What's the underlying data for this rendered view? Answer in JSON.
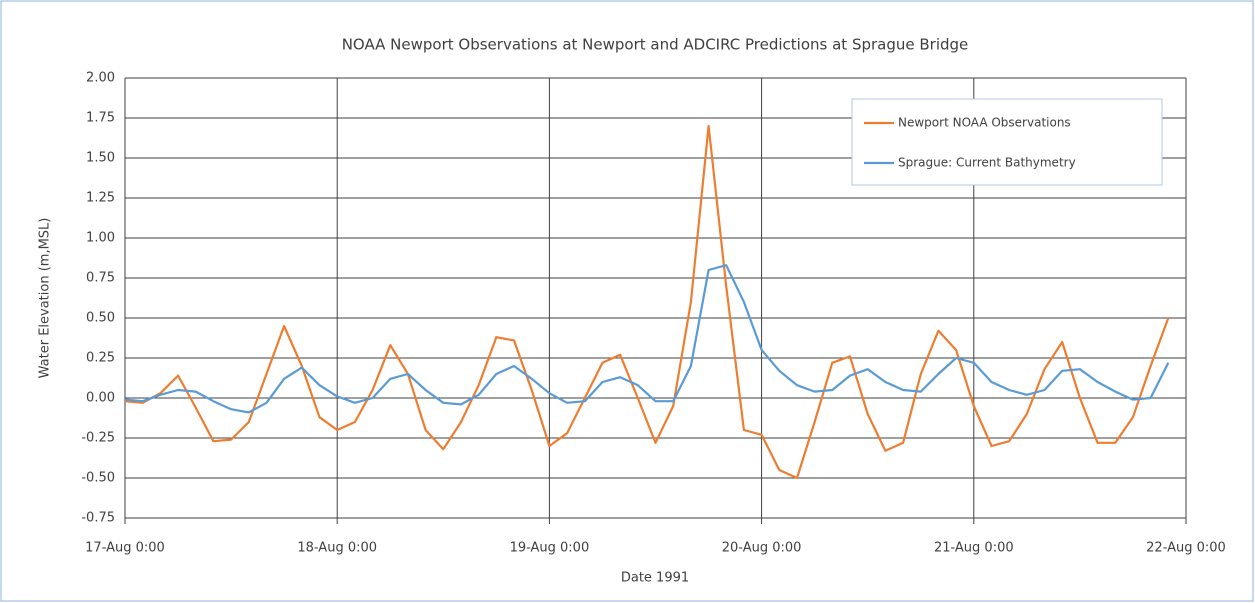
{
  "chart_data": {
    "type": "line",
    "title": "NOAA Newport Observations at Newport and ADCIRC Predictions at Sprague Bridge",
    "xlabel": "Date 1991",
    "ylabel": "Water Elevation (m,MSL)",
    "x": [
      "1991-08-17T00:00",
      "1991-08-17T02:00",
      "1991-08-17T04:00",
      "1991-08-17T06:00",
      "1991-08-17T08:00",
      "1991-08-17T10:00",
      "1991-08-17T12:00",
      "1991-08-17T14:00",
      "1991-08-17T16:00",
      "1991-08-17T18:00",
      "1991-08-17T20:00",
      "1991-08-17T22:00",
      "1991-08-18T00:00",
      "1991-08-18T02:00",
      "1991-08-18T04:00",
      "1991-08-18T06:00",
      "1991-08-18T08:00",
      "1991-08-18T10:00",
      "1991-08-18T12:00",
      "1991-08-18T14:00",
      "1991-08-18T16:00",
      "1991-08-18T18:00",
      "1991-08-18T20:00",
      "1991-08-18T22:00",
      "1991-08-19T00:00",
      "1991-08-19T02:00",
      "1991-08-19T04:00",
      "1991-08-19T06:00",
      "1991-08-19T08:00",
      "1991-08-19T10:00",
      "1991-08-19T12:00",
      "1991-08-19T14:00",
      "1991-08-19T16:00",
      "1991-08-19T18:00",
      "1991-08-19T20:00",
      "1991-08-19T22:00",
      "1991-08-20T00:00",
      "1991-08-20T02:00",
      "1991-08-20T04:00",
      "1991-08-20T06:00",
      "1991-08-20T08:00",
      "1991-08-20T10:00",
      "1991-08-20T12:00",
      "1991-08-20T14:00",
      "1991-08-20T16:00",
      "1991-08-20T18:00",
      "1991-08-20T20:00",
      "1991-08-20T22:00",
      "1991-08-21T00:00",
      "1991-08-21T02:00",
      "1991-08-21T04:00",
      "1991-08-21T06:00",
      "1991-08-21T08:00",
      "1991-08-21T10:00",
      "1991-08-21T12:00",
      "1991-08-21T14:00",
      "1991-08-21T16:00",
      "1991-08-21T18:00",
      "1991-08-21T20:00",
      "1991-08-21T22:00"
    ],
    "series": [
      {
        "name": "Newport NOAA Observations",
        "color": "#ed7d31",
        "values": [
          -0.02,
          -0.03,
          0.03,
          0.14,
          -0.06,
          -0.27,
          -0.26,
          -0.15,
          0.15,
          0.45,
          0.2,
          -0.12,
          -0.2,
          -0.15,
          0.05,
          0.33,
          0.15,
          -0.2,
          -0.32,
          -0.15,
          0.08,
          0.38,
          0.36,
          0.05,
          -0.3,
          -0.22,
          0.0,
          0.22,
          0.27,
          0.0,
          -0.28,
          -0.05,
          0.6,
          1.7,
          0.7,
          -0.2,
          -0.23,
          -0.45,
          -0.5,
          -0.15,
          0.22,
          0.26,
          -0.1,
          -0.33,
          -0.28,
          0.15,
          0.42,
          0.3,
          -0.05,
          -0.3,
          -0.27,
          -0.1,
          0.18,
          0.35,
          0.0,
          -0.28,
          -0.28,
          -0.12,
          0.2,
          0.5
        ]
      },
      {
        "name": "Sprague: Current Bathymetry",
        "color": "#5b9bd5",
        "values": [
          -0.01,
          -0.02,
          0.02,
          0.05,
          0.04,
          -0.02,
          -0.07,
          -0.09,
          -0.03,
          0.12,
          0.19,
          0.08,
          0.01,
          -0.03,
          0.0,
          0.12,
          0.15,
          0.05,
          -0.03,
          -0.04,
          0.02,
          0.15,
          0.2,
          0.12,
          0.03,
          -0.03,
          -0.02,
          0.1,
          0.13,
          0.08,
          -0.02,
          -0.02,
          0.2,
          0.8,
          0.83,
          0.6,
          0.3,
          0.17,
          0.08,
          0.04,
          0.05,
          0.14,
          0.18,
          0.1,
          0.05,
          0.04,
          0.15,
          0.25,
          0.22,
          0.1,
          0.05,
          0.02,
          0.05,
          0.17,
          0.18,
          0.1,
          0.04,
          -0.01,
          0.0,
          0.22
        ]
      }
    ],
    "xlim": [
      "1991-08-17T00:00",
      "1991-08-22T00:00"
    ],
    "xticks": [
      {
        "value": "1991-08-17T00:00",
        "label": "17-Aug 0:00"
      },
      {
        "value": "1991-08-18T00:00",
        "label": "18-Aug 0:00"
      },
      {
        "value": "1991-08-19T00:00",
        "label": "19-Aug 0:00"
      },
      {
        "value": "1991-08-20T00:00",
        "label": "20-Aug 0:00"
      },
      {
        "value": "1991-08-21T00:00",
        "label": "21-Aug 0:00"
      },
      {
        "value": "1991-08-22T00:00",
        "label": "22-Aug 0:00"
      }
    ],
    "ylim": [
      -0.75,
      2.0
    ],
    "yticks": [
      {
        "value": -0.75,
        "label": "-0.75"
      },
      {
        "value": -0.5,
        "label": "-0.50"
      },
      {
        "value": -0.25,
        "label": "-0.25"
      },
      {
        "value": 0,
        "label": "0.00"
      },
      {
        "value": 0.25,
        "label": "0.25"
      },
      {
        "value": 0.5,
        "label": "0.50"
      },
      {
        "value": 0.75,
        "label": "0.75"
      },
      {
        "value": 1,
        "label": "1.00"
      },
      {
        "value": 1.25,
        "label": "1.25"
      },
      {
        "value": 1.5,
        "label": "1.50"
      },
      {
        "value": 1.75,
        "label": "1.75"
      },
      {
        "value": 2,
        "label": "2.00"
      }
    ],
    "grid": true,
    "legend": "upper right"
  }
}
